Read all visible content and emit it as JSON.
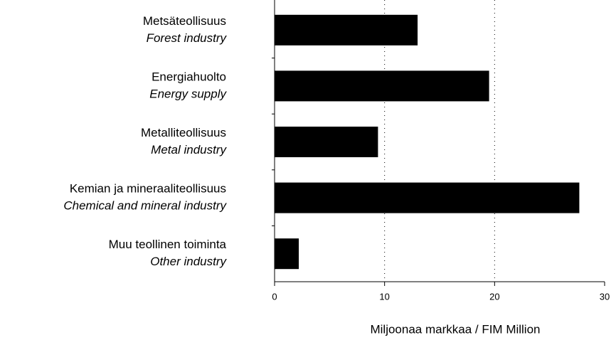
{
  "chart_data": {
    "type": "barh",
    "categories": [
      "Metsäteollisuus",
      "Energiahuolto",
      "Metalliteollisuus",
      "Kemian ja mineraaliteollisuus",
      "Muu teollinen toiminta"
    ],
    "category_translations": [
      "Forest industry",
      "Energy supply",
      "Metal industry",
      "Chemical and mineral industry",
      "Other industry"
    ],
    "values": [
      13.0,
      19.5,
      9.4,
      27.7,
      2.2
    ],
    "color": "#000000",
    "xlim": [
      0,
      30
    ],
    "xticks": [
      0,
      10,
      20,
      30
    ],
    "grid": true,
    "x_label": "Miljoonaa markkaa / FIM Million"
  }
}
